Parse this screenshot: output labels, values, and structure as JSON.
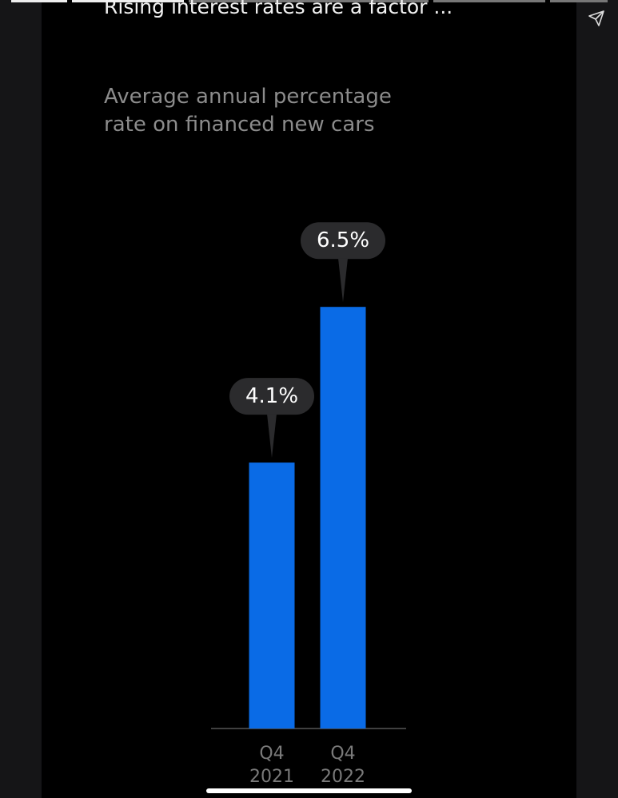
{
  "header": {
    "title": "Rising interest rates are a factor ...",
    "subtitle": "Average annual percentage rate on financed new cars"
  },
  "chart_data": {
    "type": "bar",
    "categories": [
      "Q4 2021",
      "Q4 2022"
    ],
    "values": [
      4.1,
      6.5
    ],
    "value_labels": [
      "4.1%",
      "6.5%"
    ],
    "color": "#0a6be6"
  }
}
